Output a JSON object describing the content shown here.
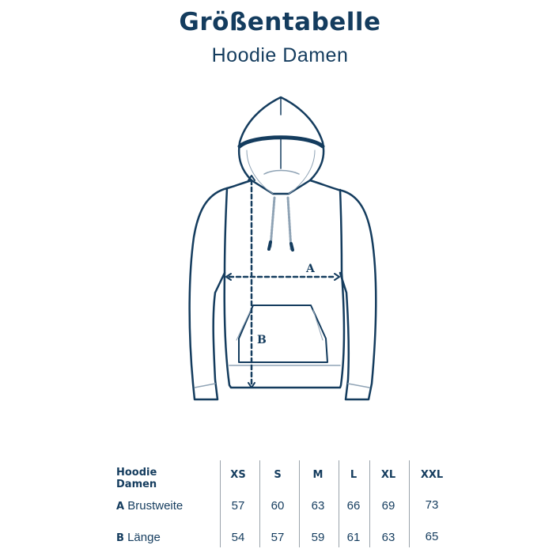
{
  "header": {
    "title": "Größentabelle",
    "subtitle": "Hoodie Damen"
  },
  "illustration": {
    "label_a": "A",
    "label_b": "B",
    "color": "#143c5e"
  },
  "table": {
    "corner_label_line1": "Hoodie",
    "corner_label_line2": "Damen",
    "sizes": [
      "XS",
      "S",
      "M",
      "L",
      "XL",
      "XXL"
    ],
    "rows": [
      {
        "key": "A",
        "label": "Brustweite",
        "values": [
          "57",
          "60",
          "63",
          "66",
          "69",
          "73"
        ]
      },
      {
        "key": "B",
        "label": "Länge",
        "values": [
          "54",
          "57",
          "59",
          "61",
          "63",
          "65"
        ]
      }
    ]
  }
}
